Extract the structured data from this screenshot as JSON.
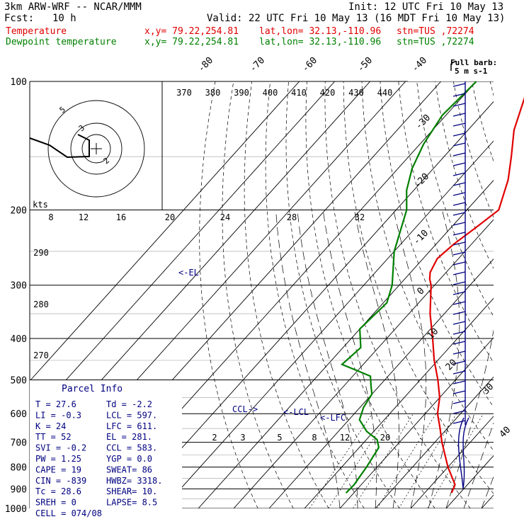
{
  "header": {
    "model": "3km ARW-WRF -- NCAR/MMM",
    "init": "Init: 12 UTC Fri 10 May 13",
    "fcst_label": "Fcst:",
    "fcst_value": "10 h",
    "valid": "Valid: 22 UTC Fri 10 May 13 (16 MDT Fri 10 May 13)",
    "temp_label": "Temperature",
    "dew_label": "Dewpoint temperature",
    "xy": "x,y= 79.22,254.81",
    "latlon": "lat,lon= 32.13,-110.96",
    "stn": "stn=TUS ,72274"
  },
  "colors": {
    "temperature": "#e00000",
    "dewpoint": "#008000",
    "wind": "#000080",
    "parcel": "#000080"
  },
  "chart_data": {
    "type": "line",
    "pressure_ticks": [
      "100",
      "200",
      "300",
      "400",
      "500",
      "600",
      "700",
      "800",
      "900",
      "1000"
    ],
    "skew_temp_labels": [
      "-80",
      "-70",
      "-60",
      "-50",
      "-40",
      "-30",
      "-20",
      "-10",
      "0",
      "10",
      "20",
      "30",
      "40"
    ],
    "theta_labels": [
      "370",
      "380",
      "390",
      "400",
      "410",
      "420",
      "430",
      "440"
    ],
    "mixing_ratio_labels": [
      "2",
      "3",
      "5",
      "8",
      "12",
      "20"
    ],
    "hodo_labels": [
      "kts",
      "8",
      "12",
      "16",
      "20",
      "24",
      "28",
      "32"
    ],
    "theta_side_labels": [
      "290",
      "280",
      "270"
    ],
    "hodo_rings": [
      "5",
      "3",
      "2"
    ],
    "temperature": {
      "p": [
        920,
        880,
        800,
        700,
        650,
        600,
        550,
        500,
        450,
        400,
        350,
        300,
        290,
        280,
        260,
        240,
        220,
        200,
        170,
        150,
        130,
        110,
        100
      ],
      "t": [
        27.6,
        26.5,
        20,
        12,
        8,
        3.5,
        0,
        -5,
        -11,
        -17,
        -24,
        -31,
        -33,
        -34.5,
        -36,
        -35,
        -33,
        -31,
        -36,
        -41,
        -47,
        -52,
        -55
      ]
    },
    "dewpoint": {
      "p": [
        920,
        880,
        800,
        720,
        690,
        660,
        620,
        580,
        540,
        520,
        490,
        460,
        420,
        380,
        330,
        300,
        250,
        200,
        180,
        160,
        140,
        120,
        100
      ],
      "td": [
        -2.2,
        -2,
        -3,
        -4.5,
        -7,
        -12,
        -17,
        -19,
        -20,
        -22,
        -25,
        -36,
        -35,
        -40,
        -39,
        -42,
        -50,
        -57,
        -62,
        -66,
        -69,
        -71,
        -70
      ]
    },
    "el_marker": "<-EL",
    "ccl_marker": "CCL->",
    "lcl_marker": "<-LCL",
    "lfc_marker": "<-LFC"
  },
  "wind_barb": {
    "title": "Full barb:",
    "value": "5 m s-1"
  },
  "parcel_info": {
    "title": "Parcel Info",
    "rows": [
      [
        "T  =    27.6",
        "Td =  -2.2"
      ],
      [
        "LI =    -0.3",
        "LCL =  597."
      ],
      [
        "K  =      24",
        "LFC =  611."
      ],
      [
        "TT =      52",
        "EL  =  281."
      ],
      [
        "SVI =   -0.2",
        "CCL =  583."
      ],
      [
        "PW =    1.25",
        "YGP =   0.0"
      ],
      [
        "CAPE =    19",
        "SWEAT=   86"
      ],
      [
        "CIN =   -839",
        "HWBZ= 3318."
      ],
      [
        "Tc =    28.6",
        "SHEAR=  10."
      ],
      [
        "SREH =     0",
        "LAPSE=  8.5"
      ],
      [
        "CELL = 074/08",
        ""
      ]
    ]
  }
}
